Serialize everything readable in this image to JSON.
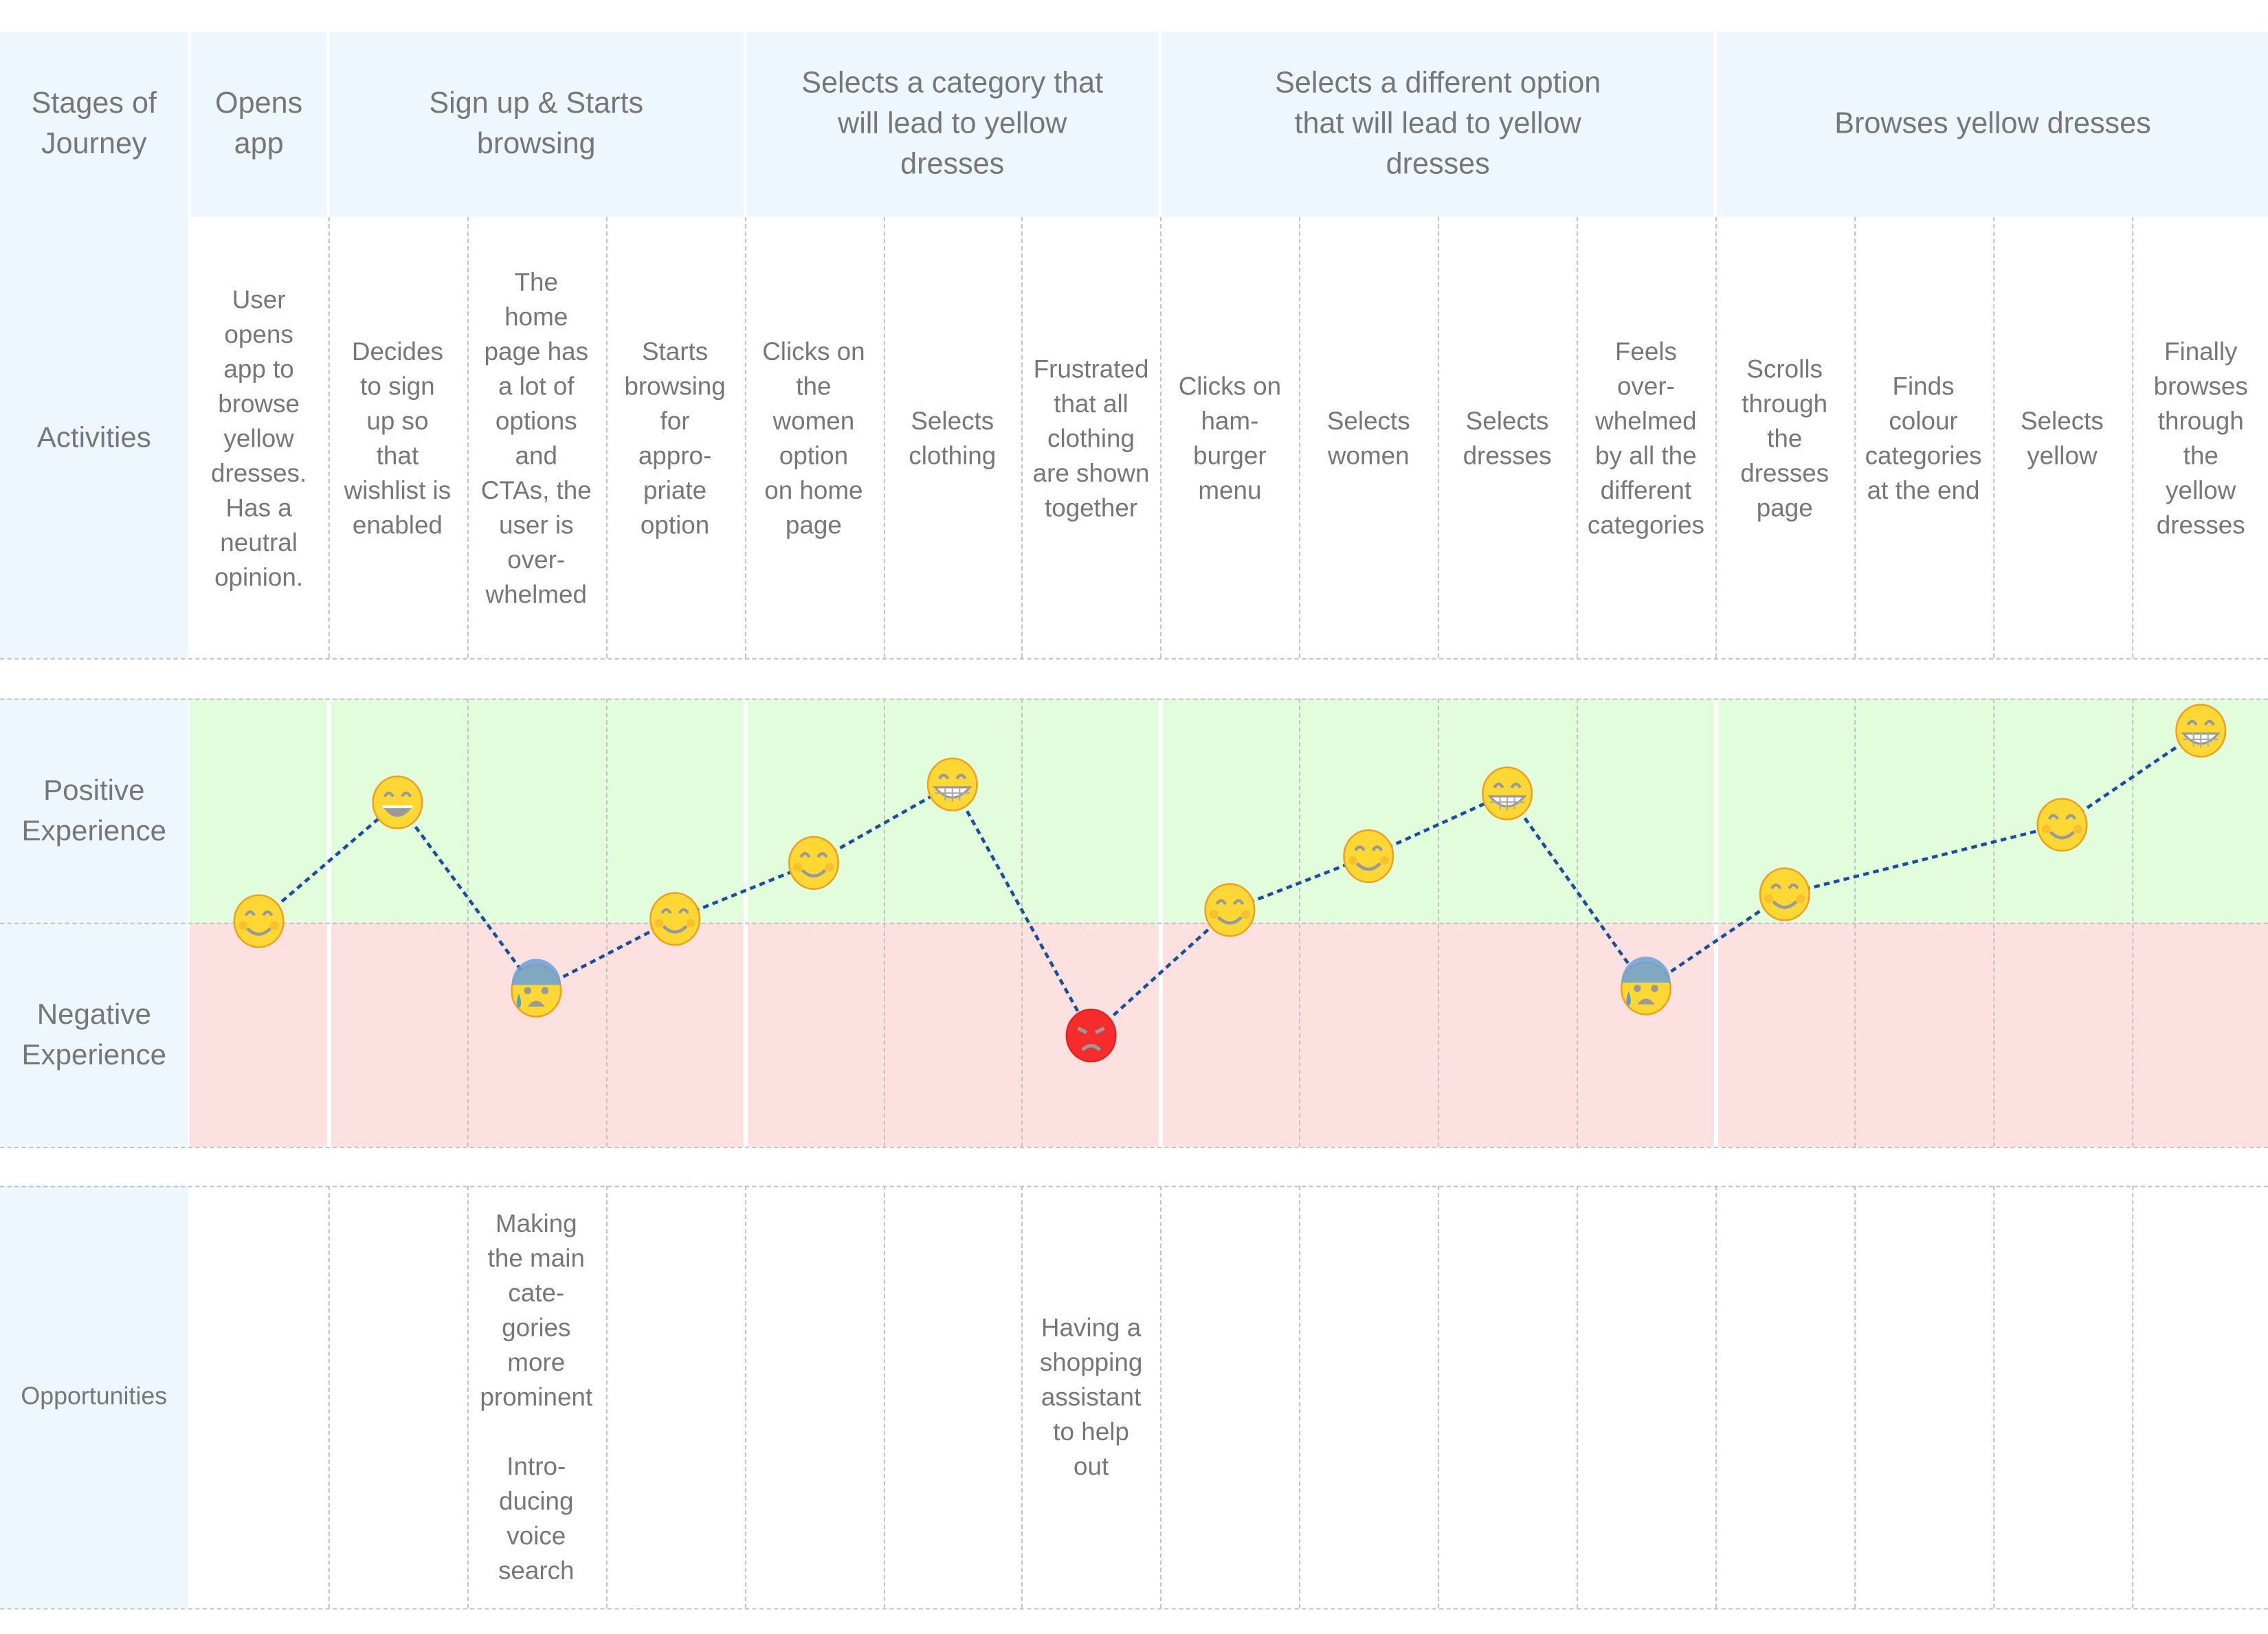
{
  "row_labels": {
    "stages": "Stages of\nJourney",
    "activities": "Activities",
    "positive": "Positive\nExperience",
    "negative": "Negative\nExperience",
    "opportunities": "Opportunities"
  },
  "colors": {
    "header_bg": "#eef6fe",
    "positive_bg": "#e2fddb",
    "negative_bg": "#fde1e0",
    "line": "#1a4f9c",
    "text": "#777777"
  },
  "stages": [
    {
      "title": "Opens\napp",
      "activities": [
        {
          "text": "User\nopens\napp to\nbrowse\nyellow\ndresses.\nHas a\nneutral\nopinion.",
          "opportunity": "",
          "emotion": {
            "score": 0.0,
            "emoji": "smiling-face-icon"
          }
        }
      ]
    },
    {
      "title": "Sign up & Starts\nbrowsing",
      "activities": [
        {
          "text": "Decides\nto sign\nup so\nthat\nwishlist is\nenabled",
          "opportunity": "",
          "emotion": {
            "score": 0.53,
            "emoji": "grinning-face-icon"
          }
        },
        {
          "text": "The\nhome\npage has\na lot of\noptions\nand\nCTAs, the\nuser is\nover-\nwhelmed",
          "opportunity": "Making\nthe main\ncate-\ngories\nmore\nprominent\n\nIntro-\nducing\nvoice\nsearch",
          "emotion": {
            "score": -0.31,
            "emoji": "anxious-face-icon"
          }
        },
        {
          "text": "Starts\nbrowsing\nfor\nappro-\npriate\noption",
          "opportunity": "",
          "emotion": {
            "score": 0.01,
            "emoji": "smiling-face-icon"
          }
        }
      ]
    },
    {
      "title": "Selects a category that\nwill lead to yellow\ndresses",
      "activities": [
        {
          "text": "Clicks on\nthe\nwomen\noption\non home\npage",
          "opportunity": "",
          "emotion": {
            "score": 0.26,
            "emoji": "smiling-face-icon"
          }
        },
        {
          "text": "Selects\nclothing",
          "opportunity": "",
          "emotion": {
            "score": 0.61,
            "emoji": "beaming-face-icon"
          }
        },
        {
          "text": "Frustrated\nthat all\nclothing\nare shown\ntogether",
          "opportunity": "Having a\nshopping\nassistant\nto help\nout",
          "emotion": {
            "score": -0.51,
            "emoji": "angry-face-icon"
          }
        }
      ]
    },
    {
      "title": "Selects a different option\nthat will lead to yellow\ndresses",
      "activities": [
        {
          "text": "Clicks on\nham-\nburger\nmenu",
          "opportunity": "",
          "emotion": {
            "score": 0.05,
            "emoji": "smiling-face-icon"
          }
        },
        {
          "text": "Selects\nwomen",
          "opportunity": "",
          "emotion": {
            "score": 0.29,
            "emoji": "smiling-face-icon"
          }
        },
        {
          "text": "Selects\ndresses",
          "opportunity": "",
          "emotion": {
            "score": 0.57,
            "emoji": "beaming-face-icon"
          }
        },
        {
          "text": "Feels\nover-\nwhelmed\nby all the\ndifferent\ncategories",
          "opportunity": "",
          "emotion": {
            "score": -0.3,
            "emoji": "anxious-face-icon"
          }
        }
      ]
    },
    {
      "title": "Browses yellow dresses",
      "activities": [
        {
          "text": "Scrolls\nthrough\nthe\ndresses\npage",
          "opportunity": "",
          "emotion": {
            "score": 0.12,
            "emoji": "smiling-face-icon"
          }
        },
        {
          "text": "Finds\ncolour\ncategories\nat the end",
          "opportunity": "",
          "emotion": null
        },
        {
          "text": "Selects\nyellow",
          "opportunity": "",
          "emotion": {
            "score": 0.43,
            "emoji": "smiling-face-icon"
          }
        },
        {
          "text": "Finally\nbrowses\nthrough\nthe\nyellow\ndresses",
          "opportunity": "",
          "emotion": {
            "score": 0.85,
            "emoji": "beaming-face-icon"
          }
        }
      ]
    }
  ]
}
